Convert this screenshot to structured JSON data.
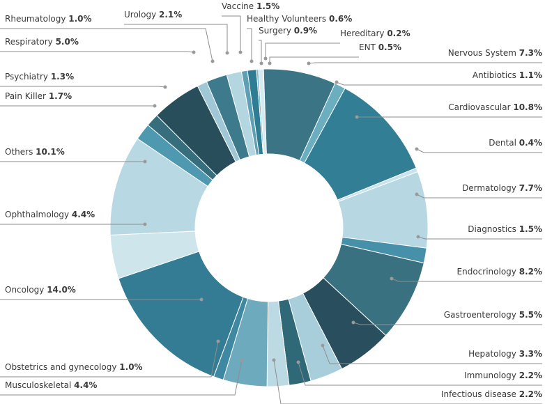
{
  "chart_data": {
    "type": "pie",
    "donut": true,
    "title": "",
    "legend": "none",
    "slices": [
      {
        "label": "Nervous System",
        "value": 7.3,
        "display": "7.3%",
        "color": "#3b7585"
      },
      {
        "label": "Antibiotics",
        "value": 1.1,
        "display": "1.1%",
        "color": "#6aaec0"
      },
      {
        "label": "Cardiovascular",
        "value": 10.8,
        "display": "10.8%",
        "color": "#317e95"
      },
      {
        "label": "Dental",
        "value": 0.4,
        "display": "0.4%",
        "color": "#c9e3ec"
      },
      {
        "label": "Dermatology",
        "value": 7.7,
        "display": "7.7%",
        "color": "#b7d7e2"
      },
      {
        "label": "Diagnostics",
        "value": 1.5,
        "display": "1.5%",
        "color": "#4690aa"
      },
      {
        "label": "Endocrinology",
        "value": 8.2,
        "display": "8.2%",
        "color": "#3a7181"
      },
      {
        "label": "Gastroenterology",
        "value": 5.5,
        "display": "5.5%",
        "color": "#294e5d"
      },
      {
        "label": "Hepatology",
        "value": 3.3,
        "display": "3.3%",
        "color": "#a8cedb"
      },
      {
        "label": "Immunology",
        "value": 2.2,
        "display": "2.2%",
        "color": "#2f6977"
      },
      {
        "label": "Infectious disease",
        "value": 2.2,
        "display": "2.2%",
        "color": "#bcdae4"
      },
      {
        "label": "Musculoskeletal",
        "value": 4.4,
        "display": "4.4%",
        "color": "#6eaabd"
      },
      {
        "label": "Obstetrics and gynecology",
        "value": 1.0,
        "display": "1.0%",
        "color": "#3f88a1"
      },
      {
        "label": "Oncology",
        "value": 14.0,
        "display": "14.0%",
        "color": "#347c93"
      },
      {
        "label": "Ophthalmology",
        "value": 4.4,
        "display": "4.4%",
        "color": "#cfe5ec"
      },
      {
        "label": "Others",
        "value": 10.1,
        "display": "10.1%",
        "color": "#b8d8e3"
      },
      {
        "label": "Pain Killer",
        "value": 1.7,
        "display": "1.7%",
        "color": "#4e98b0"
      },
      {
        "label": "Psychiatry",
        "value": 1.3,
        "display": "1.3%",
        "color": "#366e7d"
      },
      {
        "label": "Respiratory",
        "value": 5.0,
        "display": "5.0%",
        "color": "#284e5c"
      },
      {
        "label": "Rheumatology",
        "value": 1.0,
        "display": "1.0%",
        "color": "#9fc7d5"
      },
      {
        "label": "Urology",
        "value": 2.1,
        "display": "2.1%",
        "color": "#3d7b8c"
      },
      {
        "label": "Vaccine",
        "value": 1.5,
        "display": "1.5%",
        "color": "#b4d6e1"
      },
      {
        "label": "Healthy Volunteers",
        "value": 0.6,
        "display": "0.6%",
        "color": "#5e9fb4"
      },
      {
        "label": "Surgery",
        "value": 0.9,
        "display": "0.9%",
        "color": "#2f7d93"
      },
      {
        "label": "Hereditary",
        "value": 0.2,
        "display": "0.2%",
        "color": "#7fb8c9"
      },
      {
        "label": "ENT",
        "value": 0.5,
        "display": "0.5%",
        "color": "#d6eaf1"
      }
    ]
  }
}
